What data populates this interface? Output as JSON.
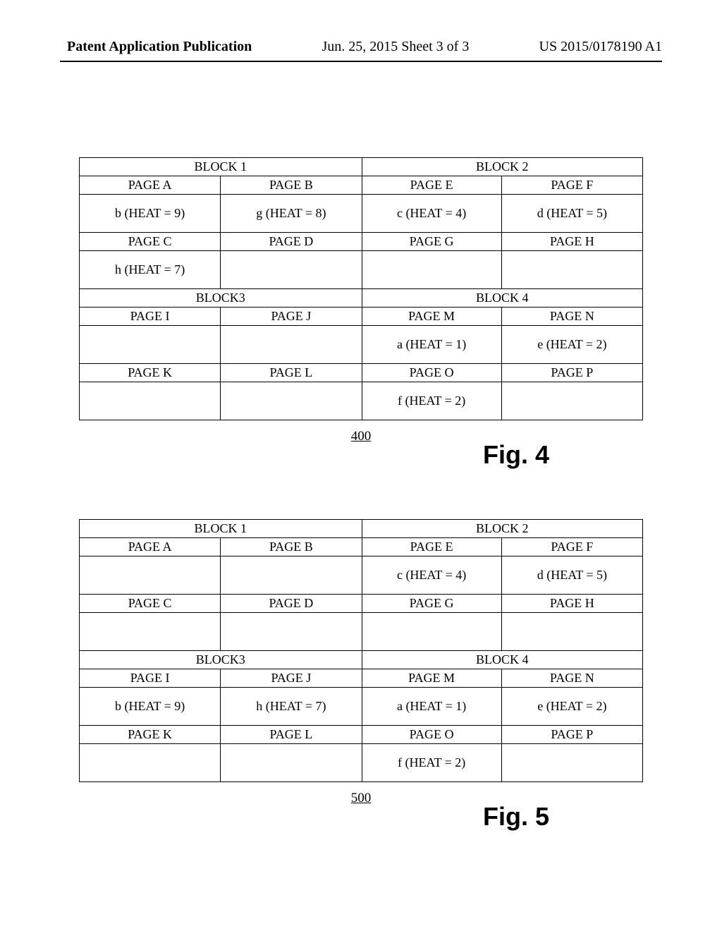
{
  "header": {
    "left": "Patent Application Publication",
    "center": "Jun. 25, 2015  Sheet 3 of 3",
    "right": "US 2015/0178190 A1"
  },
  "fig4": {
    "ref": "400",
    "label": "Fig. 4",
    "blocks": {
      "b1": "BLOCK 1",
      "b2": "BLOCK 2",
      "b3": "BLOCK3",
      "b4": "BLOCK 4"
    },
    "pages": {
      "a": "PAGE A",
      "b": "PAGE B",
      "c": "PAGE C",
      "d": "PAGE D",
      "e": "PAGE E",
      "f": "PAGE F",
      "g": "PAGE G",
      "h": "PAGE H",
      "i": "PAGE I",
      "j": "PAGE J",
      "k": "PAGE K",
      "l": "PAGE L",
      "m": "PAGE M",
      "n": "PAGE N",
      "o": "PAGE O",
      "p": "PAGE P"
    },
    "heat": {
      "a_b": "b (HEAT = 9)",
      "b_g": "g (HEAT = 8)",
      "e_c": "c (HEAT = 4)",
      "f_d": "d (HEAT = 5)",
      "c_h": "h (HEAT = 7)",
      "d_": "",
      "g_": "",
      "h_": "",
      "i_": "",
      "j_": "",
      "m_a": "a (HEAT = 1)",
      "n_e": "e (HEAT = 2)",
      "k_": "",
      "l_": "",
      "o_f": "f (HEAT = 2)",
      "p_": ""
    }
  },
  "fig5": {
    "ref": "500",
    "label": "Fig. 5",
    "blocks": {
      "b1": "BLOCK 1",
      "b2": "BLOCK 2",
      "b3": "BLOCK3",
      "b4": "BLOCK 4"
    },
    "pages": {
      "a": "PAGE A",
      "b": "PAGE B",
      "c": "PAGE C",
      "d": "PAGE D",
      "e": "PAGE E",
      "f": "PAGE F",
      "g": "PAGE G",
      "h": "PAGE H",
      "i": "PAGE I",
      "j": "PAGE J",
      "k": "PAGE K",
      "l": "PAGE L",
      "m": "PAGE M",
      "n": "PAGE N",
      "o": "PAGE O",
      "p": "PAGE P"
    },
    "heat": {
      "a_": "",
      "b_": "",
      "e_c": "c (HEAT = 4)",
      "f_d": "d (HEAT = 5)",
      "c_": "",
      "d_": "",
      "g_": "",
      "h_": "",
      "i_b": "b (HEAT = 9)",
      "j_h": "h (HEAT = 7)",
      "m_a": "a (HEAT = 1)",
      "n_e": "e (HEAT = 2)",
      "k_": "",
      "l_": "",
      "o_f": "f (HEAT = 2)",
      "p_": ""
    }
  }
}
